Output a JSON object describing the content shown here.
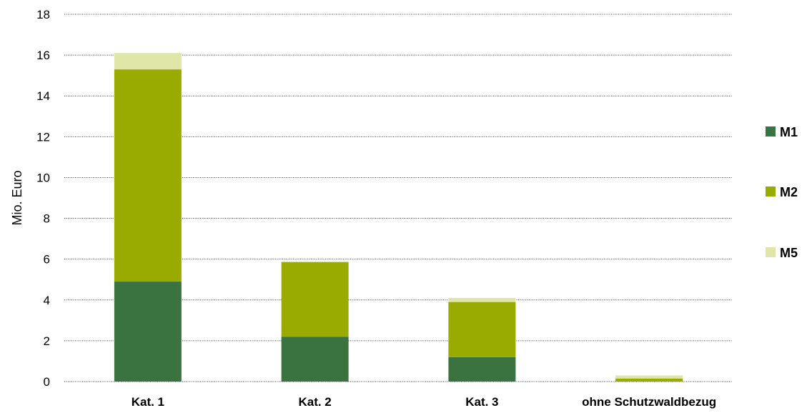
{
  "chart_data": {
    "type": "bar",
    "stacked": true,
    "categories": [
      "Kat. 1",
      "Kat. 2",
      "Kat. 3",
      "ohne Schutzwaldbezug"
    ],
    "series": [
      {
        "name": "M1",
        "color": "#3a7340",
        "values": [
          4.9,
          2.2,
          1.2,
          0.0
        ]
      },
      {
        "name": "M2",
        "color": "#9aab00",
        "values": [
          10.4,
          3.65,
          2.7,
          0.15
        ]
      },
      {
        "name": "M5",
        "color": "#dfe6a8",
        "values": [
          0.8,
          0.05,
          0.2,
          0.15
        ]
      }
    ],
    "ylabel": "Mio. Euro",
    "ylim": [
      0,
      18
    ],
    "yticks": [
      "0",
      "2",
      "4",
      "6",
      "8",
      "10",
      "12",
      "14",
      "16",
      "18"
    ],
    "grid": true,
    "legend_position": "right"
  }
}
